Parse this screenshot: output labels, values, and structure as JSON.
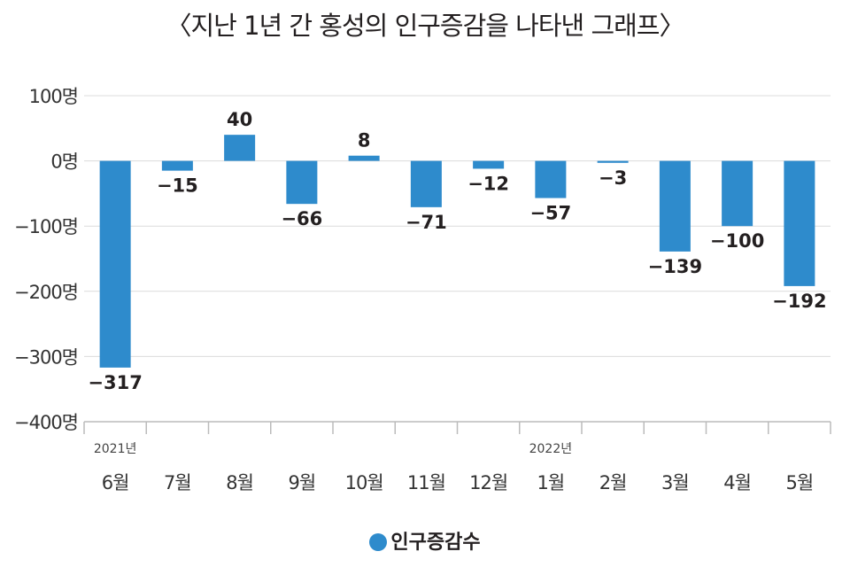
{
  "chart_data": {
    "type": "bar",
    "title": "〈지난 1년 간 홍성의 인구증감을 나타낸 그래프〉",
    "categories": [
      "6월",
      "7월",
      "8월",
      "9월",
      "10월",
      "11월",
      "12월",
      "1월",
      "2월",
      "3월",
      "4월",
      "5월"
    ],
    "year_labels": [
      {
        "index": 0,
        "label": "2021년"
      },
      {
        "index": 7,
        "label": "2022년"
      }
    ],
    "series": [
      {
        "name": "인구증감수",
        "values": [
          -317,
          -15,
          40,
          -66,
          8,
          -71,
          -12,
          -57,
          -3,
          -139,
          -100,
          -192
        ],
        "color": "#2e8bcc"
      }
    ],
    "data_labels": [
      "−317",
      "−15",
      "40",
      "−66",
      "8",
      "−71",
      "−12",
      "−57",
      "−3",
      "−139",
      "−100",
      "−192"
    ],
    "yticks": [
      100,
      0,
      -100,
      -200,
      -300,
      -400
    ],
    "ytick_labels": [
      "100명",
      "0명",
      "−100명",
      "−200명",
      "−300명",
      "−400명"
    ],
    "ylim": [
      -400,
      100
    ],
    "xlabel": "",
    "ylabel": "",
    "grid": true,
    "legend": "bottom-center"
  }
}
